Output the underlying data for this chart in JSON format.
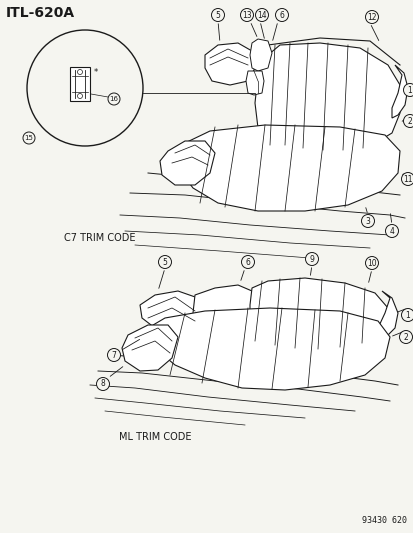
{
  "title": "ITL-620A",
  "background_color": "#f5f5f0",
  "line_color": "#1a1a1a",
  "text_color": "#1a1a1a",
  "part_number": "93430 620",
  "c7_trim_label": "C7 TRIM CODE",
  "ml_trim_label": "ML TRIM CODE",
  "figsize": [
    4.14,
    5.33
  ],
  "dpi": 100
}
